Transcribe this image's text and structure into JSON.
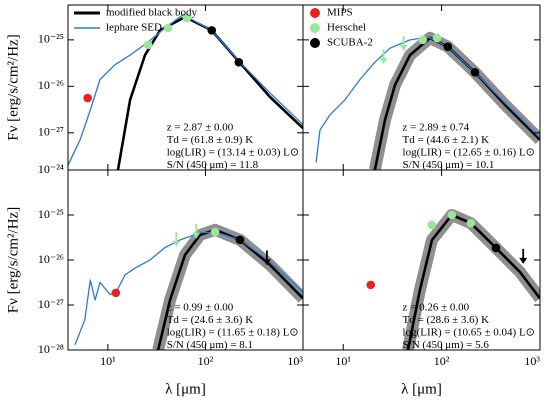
{
  "chart_data": [
    {
      "type": "line",
      "log_x": true,
      "log_y": true,
      "xlim": [
        3.9,
        1000
      ],
      "ylim": [
        1.585e-28,
        5.623e-25
      ],
      "xticks": [
        10,
        100,
        1000
      ],
      "yticks": [
        {
          "value": 1e-25,
          "label": "10⁻²⁵"
        },
        {
          "value": 1e-26,
          "label": "10⁻²⁶"
        },
        {
          "value": 1e-27,
          "label": "10⁻²⁷"
        }
      ],
      "ylabel": "Fν [erg/s/cm²/Hz]",
      "legend_loc": "upper left",
      "legend": [
        {
          "name": "modified black body",
          "color": "#000000",
          "marker": "line"
        },
        {
          "name": "lephare SED",
          "color": "#2b7bd6",
          "marker": "line"
        }
      ],
      "annotations": [
        "z = 2.87 ± 0.00",
        "Td = (61.8 ± 0.9) K",
        "log(LIR) = (13.14 ± 0.03) L⊙",
        "S/N (450 μm) =   11.8"
      ],
      "series": [
        {
          "type": "line",
          "color": "#000000",
          "band": false,
          "x": [
            12.7,
            16.9,
            24,
            34.2,
            61.7,
            116,
            226,
            459,
            1000
          ],
          "values": [
            1.6e-28,
            5.1e-27,
            4.7e-26,
            1.6e-25,
            3.1e-25,
            1.6e-25,
            3.2e-26,
            5.9e-27,
            1.26e-27
          ]
        },
        {
          "type": "line",
          "color": "#2b7bd6",
          "band": false,
          "x": [
            3.9,
            5.2,
            6.6,
            8.3,
            11.8,
            16.9,
            25.7,
            38.5,
            58.9,
            116,
            226,
            459,
            1000
          ],
          "values": [
            2e-28,
            7.1e-28,
            3.1e-27,
            1.4e-26,
            2.9e-26,
            4.7e-26,
            8.9e-26,
            1.8e-25,
            3.5e-25,
            1.6e-25,
            3.3e-26,
            7.2e-27,
            1.5e-27
          ]
        },
        {
          "type": "scatter",
          "color": "#e8231f",
          "x": [
            6.2
          ],
          "values": [
            5.6e-27
          ]
        },
        {
          "type": "scatter",
          "color": "#98e898",
          "x": [
            25.8,
            41.3,
            64.6
          ],
          "values": [
            7.8e-26,
            1.8e-25,
            2.96e-25
          ]
        },
        {
          "type": "scatter",
          "color": "#000000",
          "x": [
            116,
            220
          ],
          "values": [
            1.6e-25,
            3.3e-26
          ]
        }
      ]
    },
    {
      "type": "line",
      "log_x": true,
      "log_y": true,
      "xlim": [
        3.9,
        1000
      ],
      "ylim": [
        1.585e-28,
        5.623e-25
      ],
      "xticks": [
        10,
        100,
        1000
      ],
      "yticks": [
        1e-25,
        1e-26,
        1e-27
      ],
      "legend_loc": "upper left",
      "legend": [
        {
          "name": "MIPS",
          "color": "#e8231f",
          "marker": "dot"
        },
        {
          "name": "Herschel",
          "color": "#98e898",
          "marker": "dot"
        },
        {
          "name": "SCUBA-2",
          "color": "#000000",
          "marker": "dot"
        }
      ],
      "annotations": [
        "z = 2.89 ± 0.74",
        "Td = (44.6 ± 2.1) K",
        "log(LIR) = (12.65 ± 0.16) L⊙",
        "S/N (450 μm) = 10.1"
      ],
      "series": [
        {
          "type": "line",
          "color": "#000000",
          "band": true,
          "x": [
            21,
            26.6,
            33.6,
            47.7,
            76.2,
            116,
            218,
            441,
            1000
          ],
          "values": [
            1.6e-28,
            1.9e-27,
            1.07e-26,
            4.7e-26,
            1.1e-25,
            7.1e-26,
            2e-26,
            4e-27,
            7.1e-28
          ]
        },
        {
          "type": "line",
          "color": "#2b7bd6",
          "band": false,
          "x": [
            5.3,
            5.8,
            7.3,
            10.4,
            14.8,
            21,
            29.9,
            47.7,
            72.8,
            116,
            218,
            441,
            1000
          ],
          "values": [
            2.3e-28,
            1.15e-27,
            2.4e-27,
            5.1e-27,
            1.4e-26,
            3.3e-26,
            6.6e-26,
            1e-25,
            1.15e-25,
            7.1e-26,
            2e-26,
            4.4e-27,
            7.8e-28
          ]
        },
        {
          "type": "upper_limit",
          "color": "#98e898",
          "x": [
            25.7,
            41.1
          ],
          "values": [
            4.7e-26,
            9e-26
          ]
        },
        {
          "type": "scatter",
          "color": "#98e898",
          "x": [
            64.3,
            90
          ],
          "values": [
            1e-25,
            1.1e-25
          ]
        },
        {
          "type": "scatter",
          "color": "#000000",
          "x": [
            115.7,
            218.5
          ],
          "values": [
            7.1e-26,
            2e-26
          ]
        }
      ]
    },
    {
      "type": "line",
      "log_x": true,
      "log_y": true,
      "xlim": [
        3.9,
        1000
      ],
      "ylim": [
        1e-28,
        1e-24
      ],
      "xticks": [
        {
          "value": 10,
          "label": "10¹"
        },
        {
          "value": 100,
          "label": "10²"
        },
        {
          "value": 1000,
          "label": "10³"
        }
      ],
      "yticks": [
        {
          "value": 1e-24,
          "label": "10⁻²⁴"
        },
        {
          "value": 1e-25,
          "label": "10⁻²⁵"
        },
        {
          "value": 1e-26,
          "label": "10⁻²⁶"
        },
        {
          "value": 1e-27,
          "label": "10⁻²⁷"
        },
        {
          "value": 1e-28,
          "label": "10⁻²⁸"
        }
      ],
      "ylabel": "Fν [erg/s/cm²/Hz]",
      "xlabel": "λ [μm]",
      "annotations": [
        "z = 0.99 ± 0.00",
        "Td = (24.6 ± 3.6) K",
        "log(LIR) = (11.65 ± 0.18) L⊙",
        "S/N (450 μm) = 8.1"
      ],
      "series": [
        {
          "type": "line",
          "color": "#000000",
          "band": true,
          "x": [
            32.7,
            43.4,
            61.7,
            87.9,
            125.6,
            226,
            459,
            1000
          ],
          "values": [
            1e-28,
            1.3e-27,
            1.3e-26,
            3.6e-26,
            4.7e-26,
            2.8e-26,
            7.8e-27,
            1.4e-27
          ]
        },
        {
          "type": "line",
          "color": "#2b7bd6",
          "band": false,
          "x": [
            4.6,
            5.8,
            6.6,
            7.4,
            8.3,
            10.5,
            12.06,
            15,
            19,
            27,
            38.5,
            55,
            88,
            125.6,
            226,
            459,
            1000
          ],
          "values": [
            1.3e-28,
            4.7e-28,
            3.6e-27,
            1.3e-27,
            3.2e-27,
            1.7e-27,
            1.86e-27,
            4.7e-27,
            6.6e-27,
            1e-26,
            1.9e-26,
            2.8e-26,
            4e-26,
            4.2e-26,
            2.8e-26,
            9.1e-27,
            1.95e-27
          ]
        },
        {
          "type": "scatter",
          "color": "#e8231f",
          "x": [
            12.06
          ],
          "values": [
            1.86e-27
          ]
        },
        {
          "type": "upper_limit",
          "color": "#98e898",
          "x": [
            50.3,
            80.4
          ],
          "values": [
            3.1e-26,
            4.7e-26
          ]
        },
        {
          "type": "scatter",
          "color": "#98e898",
          "x": [
            125.6
          ],
          "values": [
            4.2e-26
          ]
        },
        {
          "type": "scatter",
          "color": "#000000",
          "x": [
            226
          ],
          "values": [
            2.8e-26
          ]
        },
        {
          "type": "upper_limit",
          "color": "#000000",
          "x": [
            427
          ],
          "values": [
            1.2e-26
          ]
        }
      ]
    },
    {
      "type": "line",
      "log_x": true,
      "log_y": true,
      "xlim": [
        3.9,
        1000
      ],
      "ylim": [
        1e-28,
        1e-24
      ],
      "xticks": [
        {
          "value": 10,
          "label": "10¹"
        },
        {
          "value": 100,
          "label": "10²"
        },
        {
          "value": 1000,
          "label": "10³"
        }
      ],
      "yticks": [
        1e-24,
        1e-25,
        1e-26,
        1e-27,
        1e-28
      ],
      "xlabel": "λ [μm]",
      "annotations": [
        "z = 0.26 ± 0.00",
        "Td = (28.6 ± 3.6) K",
        "log(LIR) = (10.65 ± 0.04) L⊙",
        "S/N (450 μm) = 5.6"
      ],
      "series": [
        {
          "type": "line",
          "color": "#000000",
          "band": true,
          "x": [
            45.5,
            60,
            79.8,
            127,
            198,
            357,
            625,
            1000
          ],
          "values": [
            1e-28,
            2.1e-27,
            2.8e-26,
            1e-25,
            6.6e-26,
            1.85e-26,
            5.4e-27,
            1.4e-27
          ]
        },
        {
          "type": "scatter",
          "color": "#e8231f",
          "x": [
            19.05
          ],
          "values": [
            2.8e-27
          ]
        },
        {
          "type": "scatter",
          "color": "#98e898",
          "x": [
            79.4,
            127,
            198.4
          ],
          "values": [
            6e-26,
            1e-25,
            6.6e-26
          ]
        },
        {
          "type": "scatter",
          "color": "#000000",
          "x": [
            357
          ],
          "values": [
            1.85e-26
          ]
        },
        {
          "type": "upper_limit",
          "color": "#000000",
          "x": [
            675
          ],
          "values": [
            1.3e-26
          ]
        }
      ]
    }
  ]
}
